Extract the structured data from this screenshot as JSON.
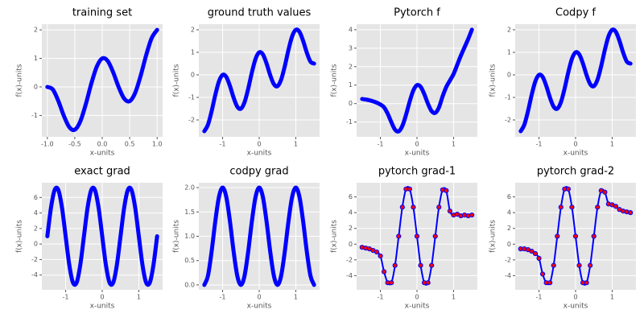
{
  "chart_data": [
    {
      "type": "line",
      "title": "training set",
      "x_label": "x-units",
      "y_label": "f(x)-units",
      "color": "#0000ff",
      "x": [
        -1.0,
        -0.9,
        -0.8,
        -0.7,
        -0.6,
        -0.5,
        -0.4,
        -0.3,
        -0.2,
        -0.1,
        0.0,
        0.1,
        0.2,
        0.3,
        0.4,
        0.5,
        0.6,
        0.7,
        0.8,
        0.9,
        1.0
      ],
      "values": [
        0,
        -0.091,
        -0.491,
        -1.009,
        -1.409,
        -1.5,
        -1.209,
        -0.609,
        0.109,
        0.709,
        1,
        0.909,
        0.509,
        -0.009,
        -0.409,
        -0.5,
        -0.209,
        0.391,
        1.109,
        1.709,
        2
      ],
      "xlim": [
        -1.1,
        1.1
      ],
      "xticks": [
        {
          "value": -1,
          "label": "-1.0"
        },
        -0.5,
        {
          "value": 0,
          "label": "0.0"
        },
        0.5,
        {
          "value": 1,
          "label": "1.0"
        }
      ],
      "ylim": [
        -1.75,
        2.2
      ],
      "yticks": [
        -1,
        0,
        1,
        2
      ],
      "grid": true
    },
    {
      "type": "line",
      "title": "ground truth values",
      "x_label": "x-units",
      "y_label": "f(x)-units",
      "color": "#0000ff",
      "x": [
        -1.5,
        -1.4,
        -1.3,
        -1.2,
        -1.1,
        -1.0,
        -0.9,
        -0.8,
        -0.7,
        -0.6,
        -0.5,
        -0.4,
        -0.3,
        -0.2,
        -0.1,
        0.0,
        0.1,
        0.2,
        0.3,
        0.4,
        0.5,
        0.6,
        0.7,
        0.8,
        0.9,
        1.0,
        1.1,
        1.2,
        1.3,
        1.4,
        1.5
      ],
      "values": [
        -2.5,
        -2.209,
        -1.609,
        -0.891,
        -0.291,
        0,
        -0.091,
        -0.491,
        -1.009,
        -1.409,
        -1.5,
        -1.209,
        -0.609,
        0.109,
        0.709,
        1,
        0.909,
        0.509,
        -0.009,
        -0.409,
        -0.5,
        -0.209,
        0.391,
        1.109,
        1.709,
        2,
        1.909,
        1.509,
        0.991,
        0.591,
        0.5
      ],
      "xlim": [
        -1.65,
        1.65
      ],
      "xticks": [
        -1,
        0,
        1
      ],
      "ylim": [
        -2.75,
        2.25
      ],
      "yticks": [
        -2,
        -1,
        0,
        1,
        2
      ],
      "grid": true
    },
    {
      "type": "line",
      "title": "Pytorch f",
      "x_label": "x-units",
      "y_label": "f(x)-units",
      "color": "#0000ff",
      "x": [
        -1.5,
        -1.4,
        -1.3,
        -1.2,
        -1.1,
        -1.0,
        -0.9,
        -0.8,
        -0.7,
        -0.6,
        -0.5,
        -0.4,
        -0.3,
        -0.2,
        -0.1,
        0.0,
        0.1,
        0.2,
        0.3,
        0.4,
        0.5,
        0.6,
        0.7,
        0.8,
        0.9,
        1.0,
        1.1,
        1.2,
        1.3,
        1.4,
        1.5
      ],
      "values": [
        0.25,
        0.22,
        0.18,
        0.12,
        0.05,
        -0.05,
        -0.2,
        -0.55,
        -1.009,
        -1.409,
        -1.5,
        -1.209,
        -0.609,
        0.109,
        0.709,
        1,
        0.909,
        0.509,
        -0.009,
        -0.409,
        -0.5,
        -0.209,
        0.391,
        0.9,
        1.25,
        1.6,
        2.1,
        2.6,
        3.05,
        3.5,
        4.0
      ],
      "xlim": [
        -1.65,
        1.65
      ],
      "xticks": [
        -1,
        0,
        1
      ],
      "ylim": [
        -1.8,
        4.3
      ],
      "yticks": [
        -1,
        0,
        1,
        2,
        3,
        4
      ],
      "grid": true
    },
    {
      "type": "line",
      "title": "Codpy f",
      "x_label": "x-units",
      "y_label": "f(x)-units",
      "color": "#0000ff",
      "x": [
        -1.5,
        -1.4,
        -1.3,
        -1.2,
        -1.1,
        -1.0,
        -0.9,
        -0.8,
        -0.7,
        -0.6,
        -0.5,
        -0.4,
        -0.3,
        -0.2,
        -0.1,
        0.0,
        0.1,
        0.2,
        0.3,
        0.4,
        0.5,
        0.6,
        0.7,
        0.8,
        0.9,
        1.0,
        1.1,
        1.2,
        1.3,
        1.4,
        1.5
      ],
      "values": [
        -2.5,
        -2.209,
        -1.609,
        -0.891,
        -0.291,
        0,
        -0.091,
        -0.491,
        -1.009,
        -1.409,
        -1.5,
        -1.209,
        -0.609,
        0.109,
        0.709,
        1,
        0.909,
        0.509,
        -0.009,
        -0.409,
        -0.5,
        -0.209,
        0.391,
        1.109,
        1.709,
        2,
        1.909,
        1.509,
        0.991,
        0.591,
        0.5
      ],
      "xlim": [
        -1.65,
        1.65
      ],
      "xticks": [
        -1,
        0,
        1
      ],
      "ylim": [
        -2.75,
        2.25
      ],
      "yticks": [
        -2,
        -1,
        0,
        1,
        2
      ],
      "grid": true
    },
    {
      "type": "line",
      "title": "exact grad",
      "x_label": "x-units",
      "y_label": "f(x)-units",
      "color": "#0000ff",
      "x": [
        -1.5,
        -1.4,
        -1.3,
        -1.2,
        -1.1,
        -1.0,
        -0.9,
        -0.8,
        -0.7,
        -0.6,
        -0.5,
        -0.4,
        -0.3,
        -0.2,
        -0.1,
        0.0,
        0.1,
        0.2,
        0.3,
        0.4,
        0.5,
        0.6,
        0.7,
        0.8,
        0.9,
        1.0,
        1.1,
        1.2,
        1.3,
        1.4,
        1.5
      ],
      "values": [
        1,
        4.694,
        6.976,
        6.976,
        4.694,
        1,
        -2.694,
        -4.976,
        -4.976,
        -2.694,
        1,
        4.694,
        6.976,
        6.976,
        4.694,
        1,
        -2.694,
        -4.976,
        -4.976,
        -2.694,
        1,
        4.694,
        6.976,
        6.976,
        4.694,
        1,
        -2.694,
        -4.976,
        -4.976,
        -2.694,
        1
      ],
      "xlim": [
        -1.65,
        1.65
      ],
      "xticks": [
        -1,
        0,
        1
      ],
      "ylim": [
        -5.9,
        7.9
      ],
      "yticks": [
        -4,
        -2,
        0,
        2,
        4,
        6
      ],
      "grid": true
    },
    {
      "type": "line",
      "title": "codpy grad",
      "x_label": "x-units",
      "y_label": "f(x)-units",
      "color": "#0000ff",
      "x": [
        -1.5,
        -1.4,
        -1.3,
        -1.2,
        -1.1,
        -1.0,
        -0.9,
        -0.8,
        -0.7,
        -0.6,
        -0.5,
        -0.4,
        -0.3,
        -0.2,
        -0.1,
        0.0,
        0.1,
        0.2,
        0.3,
        0.4,
        0.5,
        0.6,
        0.7,
        0.8,
        0.9,
        1.0,
        1.1,
        1.2,
        1.3,
        1.4,
        1.5
      ],
      "values": [
        0,
        0.191,
        0.691,
        1.309,
        1.809,
        2,
        1.809,
        1.309,
        0.691,
        0.191,
        0,
        0.191,
        0.691,
        1.309,
        1.809,
        2,
        1.809,
        1.309,
        0.691,
        0.191,
        0,
        0.191,
        0.691,
        1.309,
        1.809,
        2,
        1.809,
        1.309,
        0.691,
        0.191,
        0
      ],
      "xlim": [
        -1.65,
        1.65
      ],
      "xticks": [
        -1,
        0,
        1
      ],
      "ylim": [
        -0.1,
        2.1
      ],
      "yticks": [
        {
          "value": 0,
          "label": "0.0"
        },
        0.5,
        {
          "value": 1,
          "label": "1.0"
        },
        1.5,
        {
          "value": 2,
          "label": "2.0"
        }
      ],
      "grid": true
    },
    {
      "type": "line",
      "title": "pytorch grad-1",
      "x_label": "x-units",
      "y_label": "f(x)-units",
      "color": "#0000ff",
      "marker_color": "#ff0000",
      "x": [
        -1.5,
        -1.4,
        -1.3,
        -1.2,
        -1.1,
        -1.0,
        -0.9,
        -0.8,
        -0.7,
        -0.6,
        -0.5,
        -0.4,
        -0.3,
        -0.2,
        -0.1,
        0.0,
        0.1,
        0.2,
        0.3,
        0.4,
        0.5,
        0.6,
        0.7,
        0.8,
        0.9,
        1.0,
        1.1,
        1.2,
        1.3,
        1.4,
        1.5
      ],
      "values": [
        -0.4,
        -0.5,
        -0.6,
        -0.8,
        -1.0,
        -1.5,
        -3.5,
        -4.9,
        -4.9,
        -2.7,
        1,
        4.7,
        7.0,
        7.0,
        4.7,
        1,
        -2.7,
        -4.9,
        -4.9,
        -2.7,
        1,
        4.7,
        6.9,
        6.8,
        4.2,
        3.7,
        3.8,
        3.6,
        3.7,
        3.6,
        3.7
      ],
      "xlim": [
        -1.65,
        1.65
      ],
      "xticks": [
        -1,
        0,
        1
      ],
      "ylim": [
        -5.8,
        7.8
      ],
      "yticks": [
        -4,
        -2,
        0,
        2,
        4,
        6
      ],
      "grid": true
    },
    {
      "type": "line",
      "title": "pytorch grad-2",
      "x_label": "x-units",
      "y_label": "f(x)-units",
      "color": "#0000ff",
      "marker_color": "#ff0000",
      "x": [
        -1.5,
        -1.4,
        -1.3,
        -1.2,
        -1.1,
        -1.0,
        -0.9,
        -0.8,
        -0.7,
        -0.6,
        -0.5,
        -0.4,
        -0.3,
        -0.2,
        -0.1,
        0.0,
        0.1,
        0.2,
        0.3,
        0.4,
        0.5,
        0.6,
        0.7,
        0.8,
        0.9,
        1.0,
        1.1,
        1.2,
        1.3,
        1.4,
        1.5
      ],
      "values": [
        -0.6,
        -0.6,
        -0.7,
        -0.9,
        -1.2,
        -1.8,
        -3.8,
        -4.9,
        -4.9,
        -2.7,
        1,
        4.7,
        7.0,
        7.0,
        4.7,
        1,
        -2.7,
        -4.9,
        -4.9,
        -2.7,
        1,
        4.7,
        6.8,
        6.6,
        5.1,
        5.0,
        4.8,
        4.4,
        4.2,
        4.1,
        4.0
      ],
      "xlim": [
        -1.65,
        1.65
      ],
      "xticks": [
        -1,
        0,
        1
      ],
      "ylim": [
        -5.8,
        7.8
      ],
      "yticks": [
        -4,
        -2,
        0,
        2,
        4,
        6
      ],
      "grid": true
    }
  ]
}
